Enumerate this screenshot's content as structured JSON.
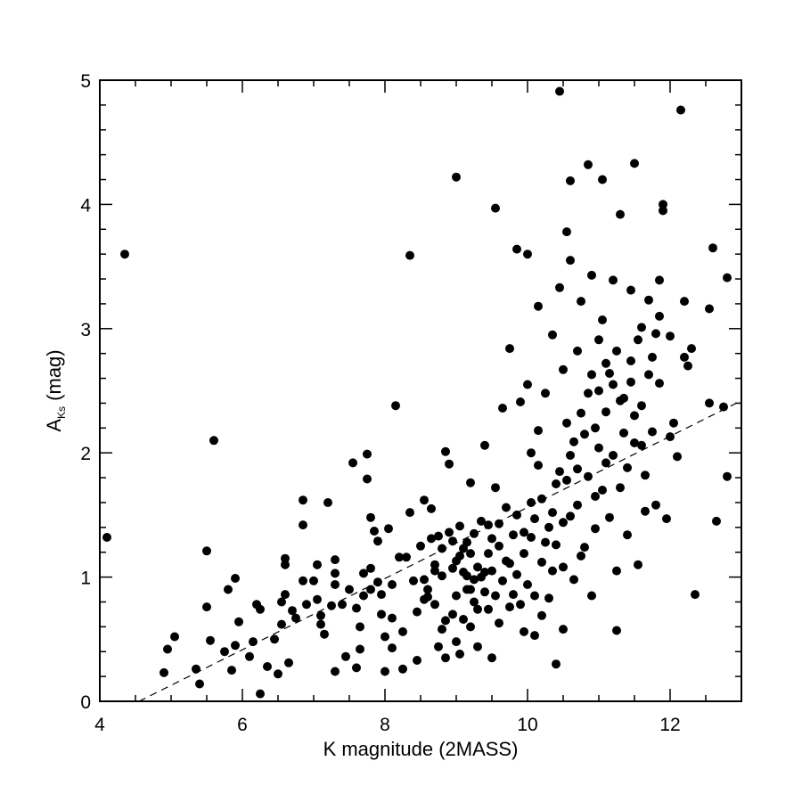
{
  "chart_data": {
    "type": "scatter",
    "title": "",
    "xlabel": "K magnitude (2MASS)",
    "ylabel": {
      "main": "A",
      "subscript": "Ks",
      "suffix": " (mag)"
    },
    "xlim": [
      4,
      13
    ],
    "ylim": [
      0,
      5
    ],
    "xticks": [
      4,
      6,
      8,
      10,
      12
    ],
    "yticks": [
      0,
      1,
      2,
      3,
      4,
      5
    ],
    "x_minor_step": 0.5,
    "y_minor_step": 0.2,
    "grid": false,
    "legend": "none",
    "colors": {
      "points": "#000000",
      "axes": "#000000",
      "fit_line": "#000000"
    },
    "fit_line": {
      "style": "dashed",
      "points": [
        [
          4.55,
          0.0
        ],
        [
          13.0,
          2.42
        ]
      ]
    },
    "series": [
      {
        "points": [
          [
            4.1,
            1.32
          ],
          [
            4.35,
            3.6
          ],
          [
            4.9,
            0.23
          ],
          [
            4.95,
            0.42
          ],
          [
            5.05,
            0.52
          ],
          [
            5.35,
            0.26
          ],
          [
            5.4,
            0.14
          ],
          [
            5.5,
            1.21
          ],
          [
            5.5,
            0.76
          ],
          [
            5.55,
            0.49
          ],
          [
            5.6,
            2.1
          ],
          [
            5.75,
            0.4
          ],
          [
            5.8,
            0.9
          ],
          [
            5.85,
            0.25
          ],
          [
            5.9,
            0.99
          ],
          [
            5.9,
            0.45
          ],
          [
            5.95,
            0.64
          ],
          [
            6.1,
            0.36
          ],
          [
            6.15,
            0.48
          ],
          [
            6.2,
            0.78
          ],
          [
            6.25,
            0.06
          ],
          [
            6.25,
            0.74
          ],
          [
            6.35,
            0.28
          ],
          [
            6.45,
            0.5
          ],
          [
            6.5,
            0.22
          ],
          [
            6.55,
            0.8
          ],
          [
            6.55,
            0.62
          ],
          [
            6.6,
            1.15
          ],
          [
            6.6,
            1.1
          ],
          [
            6.6,
            0.86
          ],
          [
            6.65,
            0.31
          ],
          [
            6.7,
            0.73
          ],
          [
            6.75,
            0.67
          ],
          [
            6.85,
            1.62
          ],
          [
            6.85,
            1.42
          ],
          [
            6.9,
            0.78
          ],
          [
            7.0,
            0.97
          ],
          [
            7.05,
            0.82
          ],
          [
            7.1,
            0.69
          ],
          [
            7.1,
            0.62
          ],
          [
            7.15,
            0.54
          ],
          [
            7.2,
            1.6
          ],
          [
            7.25,
            0.77
          ],
          [
            7.3,
            1.14
          ],
          [
            7.3,
            1.03
          ],
          [
            7.3,
            0.94
          ],
          [
            7.3,
            0.24
          ],
          [
            7.4,
            0.78
          ],
          [
            7.5,
            0.9
          ],
          [
            7.55,
            1.92
          ],
          [
            7.6,
            0.27
          ],
          [
            7.6,
            0.75
          ],
          [
            7.65,
            0.6
          ],
          [
            7.7,
            1.03
          ],
          [
            7.7,
            0.85
          ],
          [
            7.75,
            1.99
          ],
          [
            7.75,
            1.79
          ],
          [
            7.8,
            1.48
          ],
          [
            7.8,
            1.07
          ],
          [
            7.8,
            0.9
          ],
          [
            7.85,
            1.37
          ],
          [
            7.9,
            0.96
          ],
          [
            7.95,
            0.86
          ],
          [
            7.95,
            0.7
          ],
          [
            8.0,
            0.24
          ],
          [
            8.0,
            0.52
          ],
          [
            8.05,
            1.39
          ],
          [
            8.1,
            0.94
          ],
          [
            8.1,
            0.67
          ],
          [
            8.1,
            0.43
          ],
          [
            8.15,
            2.38
          ],
          [
            8.2,
            1.16
          ],
          [
            8.25,
            0.56
          ],
          [
            8.25,
            0.26
          ],
          [
            8.35,
            3.59
          ],
          [
            8.35,
            1.52
          ],
          [
            8.45,
            0.72
          ],
          [
            8.45,
            0.33
          ],
          [
            8.55,
            1.62
          ],
          [
            8.55,
            0.98
          ],
          [
            8.6,
            0.9
          ],
          [
            8.6,
            0.84
          ],
          [
            8.65,
            1.55
          ],
          [
            8.7,
            1.1
          ],
          [
            8.7,
            1.05
          ],
          [
            8.75,
            1.33
          ],
          [
            8.8,
            1.23
          ],
          [
            8.8,
            0.58
          ],
          [
            8.85,
            2.01
          ],
          [
            8.85,
            0.65
          ],
          [
            8.85,
            0.35
          ],
          [
            8.9,
            1.91
          ],
          [
            8.95,
            1.07
          ],
          [
            8.95,
            0.7
          ],
          [
            9.0,
            4.22
          ],
          [
            9.0,
            1.13
          ],
          [
            9.0,
            0.48
          ],
          [
            9.05,
            0.38
          ],
          [
            9.1,
            1.23
          ],
          [
            9.1,
            0.66
          ],
          [
            9.15,
            1.28
          ],
          [
            9.15,
            1.01
          ],
          [
            9.2,
            0.6
          ],
          [
            9.2,
            0.9
          ],
          [
            9.25,
            0.98
          ],
          [
            9.25,
            0.8
          ],
          [
            9.3,
            1.08
          ],
          [
            9.3,
            0.44
          ],
          [
            9.35,
            1.0
          ],
          [
            9.4,
            1.04
          ],
          [
            9.45,
            1.19
          ],
          [
            9.45,
            0.74
          ],
          [
            9.5,
            1.31
          ],
          [
            9.5,
            0.35
          ],
          [
            9.55,
            3.97
          ],
          [
            9.55,
            1.72
          ],
          [
            9.6,
            1.43
          ],
          [
            9.6,
            0.63
          ],
          [
            9.65,
            2.36
          ],
          [
            9.7,
            1.56
          ],
          [
            9.75,
            2.84
          ],
          [
            9.75,
            1.11
          ],
          [
            9.8,
            0.86
          ],
          [
            9.85,
            3.64
          ],
          [
            9.85,
            1.5
          ],
          [
            9.9,
            2.41
          ],
          [
            9.95,
            1.36
          ],
          [
            9.95,
            0.56
          ],
          [
            10.0,
            3.6
          ],
          [
            10.0,
            2.55
          ],
          [
            10.05,
            2.0
          ],
          [
            10.05,
            1.32
          ],
          [
            10.1,
            0.85
          ],
          [
            10.1,
            0.53
          ],
          [
            10.15,
            3.18
          ],
          [
            10.15,
            2.18
          ],
          [
            10.2,
            1.63
          ],
          [
            10.2,
            0.69
          ],
          [
            10.25,
            2.48
          ],
          [
            10.3,
            1.4
          ],
          [
            10.35,
            2.95
          ],
          [
            10.35,
            1.05
          ],
          [
            10.4,
            1.75
          ],
          [
            10.4,
            0.3
          ],
          [
            10.45,
            4.91
          ],
          [
            10.45,
            3.33
          ],
          [
            10.5,
            2.67
          ],
          [
            10.5,
            1.44
          ],
          [
            10.5,
            0.58
          ],
          [
            10.55,
            3.78
          ],
          [
            10.55,
            2.24
          ],
          [
            10.6,
            4.19
          ],
          [
            10.6,
            3.55
          ],
          [
            10.6,
            1.98
          ],
          [
            10.65,
            0.98
          ],
          [
            10.7,
            2.82
          ],
          [
            10.7,
            1.87
          ],
          [
            10.75,
            3.22
          ],
          [
            10.8,
            1.24
          ],
          [
            10.85,
            4.32
          ],
          [
            10.85,
            2.48
          ],
          [
            10.9,
            3.43
          ],
          [
            10.9,
            0.85
          ],
          [
            10.95,
            1.65
          ],
          [
            11.0,
            2.91
          ],
          [
            11.0,
            2.04
          ],
          [
            11.05,
            4.2
          ],
          [
            11.05,
            3.07
          ],
          [
            11.1,
            2.72
          ],
          [
            11.1,
            1.92
          ],
          [
            11.15,
            1.48
          ],
          [
            11.2,
            3.39
          ],
          [
            11.2,
            2.55
          ],
          [
            11.25,
            0.57
          ],
          [
            11.3,
            3.92
          ],
          [
            11.3,
            2.42
          ],
          [
            11.35,
            2.16
          ],
          [
            11.4,
            1.34
          ],
          [
            11.45,
            3.31
          ],
          [
            11.45,
            2.74
          ],
          [
            11.5,
            4.33
          ],
          [
            11.5,
            2.3
          ],
          [
            11.55,
            1.1
          ],
          [
            11.6,
            3.01
          ],
          [
            11.6,
            2.06
          ],
          [
            11.65,
            1.53
          ],
          [
            11.7,
            3.23
          ],
          [
            11.75,
            2.77
          ],
          [
            11.8,
            1.58
          ],
          [
            11.85,
            3.39
          ],
          [
            11.85,
            2.56
          ],
          [
            11.9,
            4.0
          ],
          [
            11.9,
            3.95
          ],
          [
            11.95,
            1.47
          ],
          [
            12.0,
            2.13
          ],
          [
            12.05,
            2.24
          ],
          [
            12.1,
            1.97
          ],
          [
            12.15,
            4.76
          ],
          [
            12.2,
            2.77
          ],
          [
            12.2,
            3.22
          ],
          [
            12.25,
            2.7
          ],
          [
            12.3,
            2.84
          ],
          [
            12.35,
            0.86
          ],
          [
            12.55,
            2.4
          ],
          [
            12.55,
            3.16
          ],
          [
            12.6,
            3.65
          ],
          [
            12.65,
            1.45
          ],
          [
            12.75,
            2.37
          ],
          [
            12.8,
            3.41
          ],
          [
            12.8,
            1.81
          ],
          [
            6.85,
            0.97
          ],
          [
            7.05,
            1.1
          ],
          [
            7.45,
            0.36
          ],
          [
            7.65,
            0.42
          ],
          [
            7.9,
            1.29
          ],
          [
            8.3,
            1.16
          ],
          [
            8.4,
            0.97
          ],
          [
            8.5,
            1.25
          ],
          [
            8.55,
            0.82
          ],
          [
            8.65,
            1.31
          ],
          [
            8.7,
            0.78
          ],
          [
            8.75,
            0.44
          ],
          [
            8.8,
            1.01
          ],
          [
            8.9,
            1.36
          ],
          [
            8.95,
            1.29
          ],
          [
            9.0,
            0.85
          ],
          [
            9.05,
            1.41
          ],
          [
            9.05,
            1.17
          ],
          [
            9.1,
            1.04
          ],
          [
            9.15,
            0.9
          ],
          [
            9.2,
            1.19
          ],
          [
            9.25,
            1.35
          ],
          [
            9.3,
            0.74
          ],
          [
            9.35,
            1.45
          ],
          [
            9.4,
            0.88
          ],
          [
            9.45,
            1.42
          ],
          [
            9.5,
            1.05
          ],
          [
            9.55,
            0.85
          ],
          [
            9.6,
            1.25
          ],
          [
            9.65,
            0.97
          ],
          [
            9.7,
            1.13
          ],
          [
            9.75,
            0.76
          ],
          [
            9.8,
            1.34
          ],
          [
            9.85,
            1.02
          ],
          [
            9.9,
            0.78
          ],
          [
            9.95,
            1.19
          ],
          [
            10.0,
            0.94
          ],
          [
            10.05,
            1.6
          ],
          [
            10.1,
            1.47
          ],
          [
            10.15,
            1.9
          ],
          [
            10.2,
            1.12
          ],
          [
            10.25,
            1.28
          ],
          [
            10.3,
            0.83
          ],
          [
            10.35,
            1.52
          ],
          [
            10.4,
            1.26
          ],
          [
            10.45,
            1.85
          ],
          [
            10.5,
            1.08
          ],
          [
            10.55,
            1.78
          ],
          [
            10.6,
            1.49
          ],
          [
            10.65,
            2.09
          ],
          [
            10.7,
            1.58
          ],
          [
            10.75,
            2.32
          ],
          [
            10.8,
            2.15
          ],
          [
            10.85,
            1.81
          ],
          [
            10.9,
            2.63
          ],
          [
            10.95,
            2.2
          ],
          [
            11.0,
            2.5
          ],
          [
            11.05,
            1.7
          ],
          [
            11.1,
            2.33
          ],
          [
            11.15,
            2.64
          ],
          [
            11.2,
            1.98
          ],
          [
            11.25,
            2.82
          ],
          [
            11.3,
            1.72
          ],
          [
            11.35,
            2.44
          ],
          [
            11.4,
            1.88
          ],
          [
            11.45,
            2.57
          ],
          [
            11.5,
            2.08
          ],
          [
            11.55,
            2.91
          ],
          [
            11.6,
            2.38
          ],
          [
            11.65,
            1.82
          ],
          [
            11.7,
            2.63
          ],
          [
            11.75,
            2.17
          ],
          [
            11.8,
            2.96
          ],
          [
            11.85,
            3.1
          ],
          [
            12.0,
            2.94
          ],
          [
            10.75,
            1.17
          ],
          [
            10.95,
            1.39
          ],
          [
            11.25,
            1.05
          ],
          [
            9.2,
            1.76
          ],
          [
            9.4,
            2.06
          ]
        ]
      }
    ]
  }
}
